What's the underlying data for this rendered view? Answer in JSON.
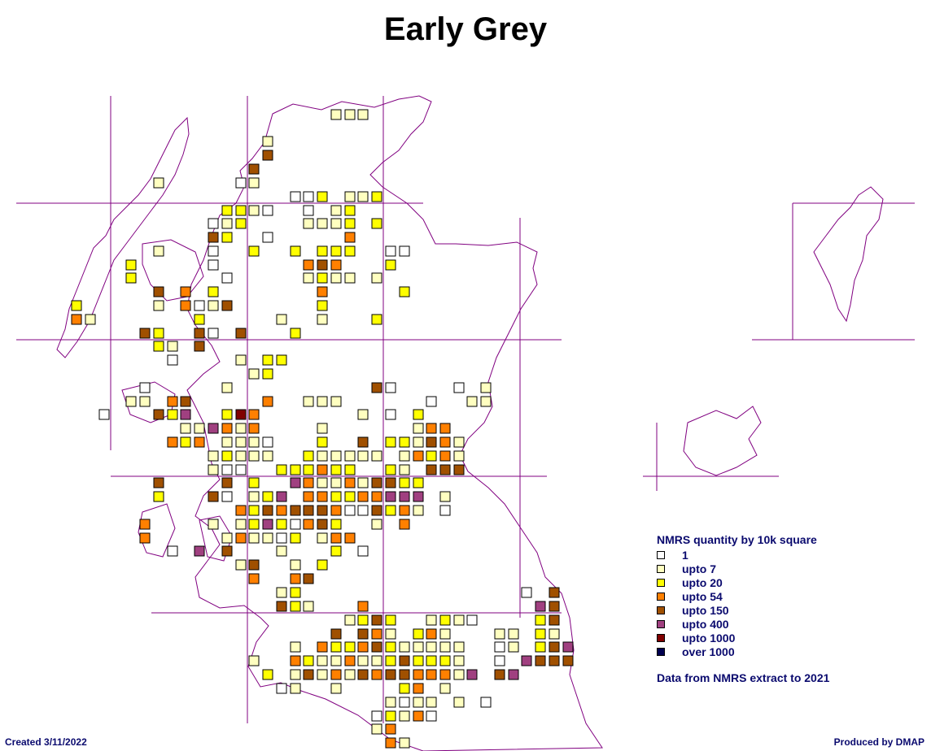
{
  "title": "Early Grey",
  "legend": {
    "title": "NMRS quantity by 10k square",
    "items": [
      {
        "label": "1",
        "color": "#ffffff"
      },
      {
        "label": "upto 7",
        "color": "#ffffc0"
      },
      {
        "label": "upto 20",
        "color": "#ffff00"
      },
      {
        "label": "upto 54",
        "color": "#ff8000"
      },
      {
        "label": "upto 150",
        "color": "#a05000"
      },
      {
        "label": "upto 400",
        "color": "#a04080"
      },
      {
        "label": "upto 1000",
        "color": "#800000"
      },
      {
        "label": "over 1000",
        "color": "#000050"
      }
    ],
    "source": "Data from NMRS extract to 2021"
  },
  "footer": {
    "created": "Created 3/11/2022",
    "produced": "Produced by DMAP"
  },
  "colors": {
    "grid_line": "#800080",
    "coastline": "#800080",
    "legend_text": "#0a0a6e"
  }
}
